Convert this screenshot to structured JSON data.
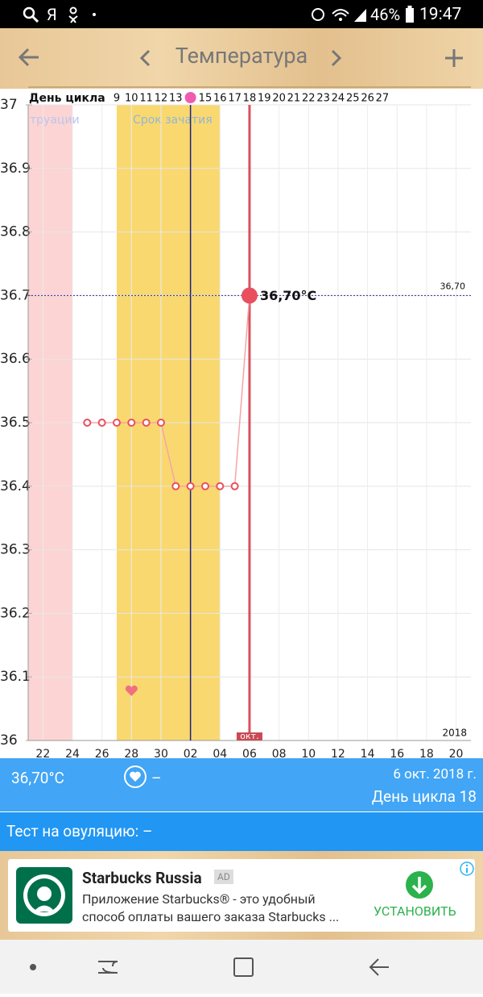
{
  "status_bar": {
    "letters": [
      "Я"
    ],
    "battery": "46%",
    "time": "19:47"
  },
  "header": {
    "title": "Температура"
  },
  "chart_data": {
    "type": "line",
    "cycle_label": "День цикла",
    "categories": [
      null,
      "22",
      null,
      "24",
      null,
      "26",
      null,
      "28",
      null,
      "30",
      null,
      "02",
      null,
      "04",
      null,
      "06",
      null,
      "08",
      null,
      "10",
      null,
      "12",
      null,
      "14",
      null,
      "16",
      null,
      "18",
      null,
      "20",
      null
    ],
    "cycle_days": [
      null,
      null,
      null,
      null,
      null,
      null,
      9,
      10,
      11,
      12,
      13,
      null,
      15,
      16,
      17,
      18,
      19,
      20,
      21,
      22,
      23,
      24,
      25,
      26,
      27,
      null,
      null,
      null,
      null,
      null,
      null
    ],
    "series": [
      {
        "name": "Температура",
        "color": "#f4a5a5",
        "marker_color": "#e8505f",
        "values": [
          null,
          null,
          null,
          null,
          36.5,
          36.5,
          36.5,
          36.5,
          36.5,
          36.5,
          36.4,
          36.4,
          36.4,
          36.4,
          36.4,
          36.7,
          null,
          null,
          null,
          null,
          null,
          null,
          null,
          null,
          null,
          null,
          null,
          null,
          null,
          null,
          null
        ],
        "value_labels": [
          null,
          null,
          null,
          null,
          null,
          null,
          null,
          null,
          null,
          null,
          null,
          null,
          null,
          null,
          null,
          "36,70°C",
          null,
          null,
          null,
          null,
          null,
          null,
          null,
          null,
          null,
          null,
          null,
          null,
          null,
          null,
          null
        ]
      }
    ],
    "bands": [
      {
        "label": "труации",
        "start": 0,
        "end": 3,
        "color": "#fdd4d4",
        "label_color": "#b9c6f0"
      },
      {
        "label": "Срок зачатия",
        "start": 6,
        "end": 13,
        "color": "#f9d870",
        "label_color": "#8fb8d8"
      }
    ],
    "ovulation_index": 11,
    "reference_line": {
      "value": 36.7,
      "label": "36,70"
    },
    "month_label": "окт.",
    "year_label": "2018",
    "ylim": [
      36,
      37
    ],
    "yticks": [
      36,
      36.1,
      36.2,
      36.3,
      36.4,
      36.5,
      36.6,
      36.7,
      36.8,
      36.9,
      37
    ],
    "grid": true
  },
  "info": {
    "temperature": "36,70°C",
    "heart": "–",
    "date": "6 окт. 2018 г.",
    "cycle_day": "День цикла 18"
  },
  "ovulation_test": "Тест на овуляцию: –",
  "ad": {
    "title": "Starbucks Russia",
    "badge": "AD",
    "text_line1": "Приложение Starbucks® - это удобный",
    "text_line2": "способ оплаты вашего заказа Starbucks ...",
    "button": "УСТАНОВИТЬ"
  }
}
